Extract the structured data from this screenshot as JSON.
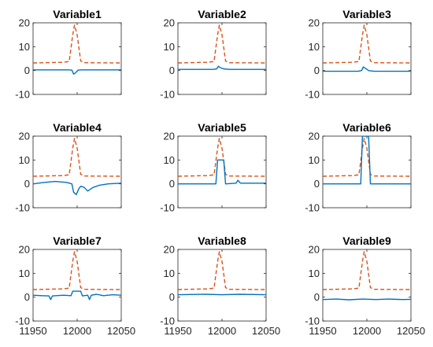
{
  "chart_data": [
    {
      "type": "line",
      "title": "Variable1",
      "xlim": [
        11950,
        12050
      ],
      "ylim": [
        -10,
        20
      ],
      "x_ticks": [
        11950,
        12000,
        12050
      ],
      "y_ticks": [
        -10,
        0,
        10,
        20
      ],
      "series": [
        {
          "color": "#D95319",
          "style": "dashed",
          "x": [
            11950,
            11985,
            11991,
            11995,
            11997,
            12000,
            12004,
            12008,
            12050
          ],
          "y": [
            3.2,
            3.5,
            3.8,
            15,
            19,
            15,
            4,
            3.3,
            3.2
          ]
        },
        {
          "color": "#0072BD",
          "style": "solid",
          "x": [
            11950,
            11990,
            11994,
            11996,
            11998,
            12001,
            12006,
            12050
          ],
          "y": [
            0.3,
            0.3,
            0.2,
            -1.5,
            -1.0,
            0.2,
            0.3,
            0.3
          ]
        }
      ]
    },
    {
      "type": "line",
      "title": "Variable2",
      "xlim": [
        11950,
        12050
      ],
      "ylim": [
        -10,
        20
      ],
      "x_ticks": [
        11950,
        12000,
        12050
      ],
      "y_ticks": [
        -10,
        0,
        10,
        20
      ],
      "series": [
        {
          "color": "#D95319",
          "style": "dashed",
          "x": [
            11950,
            11985,
            11991,
            11995,
            11997,
            12000,
            12004,
            12008,
            12050
          ],
          "y": [
            3.2,
            3.5,
            3.8,
            15,
            19,
            15,
            4,
            3.3,
            3.2
          ]
        },
        {
          "color": "#0072BD",
          "style": "solid",
          "x": [
            11950,
            11990,
            11994,
            11996,
            11998,
            12002,
            12008,
            12050
          ],
          "y": [
            0.5,
            0.5,
            0.7,
            1.8,
            1.2,
            0.7,
            0.5,
            0.5
          ]
        }
      ]
    },
    {
      "type": "line",
      "title": "Variable3",
      "xlim": [
        11950,
        12050
      ],
      "ylim": [
        -10,
        20
      ],
      "x_ticks": [
        11950,
        12000,
        12050
      ],
      "y_ticks": [
        -10,
        0,
        10,
        20
      ],
      "series": [
        {
          "color": "#D95319",
          "style": "dashed",
          "x": [
            11950,
            11985,
            11991,
            11995,
            11997,
            12000,
            12004,
            12008,
            12050
          ],
          "y": [
            3.2,
            3.5,
            3.8,
            15,
            19,
            15,
            4,
            3.3,
            3.2
          ]
        },
        {
          "color": "#0072BD",
          "style": "solid",
          "x": [
            11950,
            11990,
            11994,
            11996,
            11998,
            12002,
            12008,
            12050
          ],
          "y": [
            -0.3,
            -0.3,
            0,
            1.5,
            1.0,
            0,
            -0.3,
            -0.3
          ]
        }
      ]
    },
    {
      "type": "line",
      "title": "Variable4",
      "xlim": [
        11950,
        12050
      ],
      "ylim": [
        -10,
        20
      ],
      "x_ticks": [
        11950,
        12000,
        12050
      ],
      "y_ticks": [
        -10,
        0,
        10,
        20
      ],
      "series": [
        {
          "color": "#D95319",
          "style": "dashed",
          "x": [
            11950,
            11985,
            11991,
            11995,
            11997,
            12000,
            12004,
            12008,
            12050
          ],
          "y": [
            3.2,
            3.5,
            3.8,
            15,
            19,
            15,
            4,
            3.3,
            3.2
          ]
        },
        {
          "color": "#0072BD",
          "style": "solid",
          "x": [
            11950,
            11960,
            11975,
            11988,
            11994,
            11996,
            11999,
            12002,
            12004,
            12008,
            12012,
            12018,
            12025,
            12035,
            12050
          ],
          "y": [
            0,
            0.5,
            1.0,
            0.6,
            0,
            -3.5,
            -4.5,
            -2,
            -1,
            -1.5,
            -3,
            -1.5,
            -0.6,
            0,
            0.3
          ]
        }
      ]
    },
    {
      "type": "line",
      "title": "Variable5",
      "xlim": [
        11950,
        12050
      ],
      "ylim": [
        -10,
        20
      ],
      "x_ticks": [
        11950,
        12000,
        12050
      ],
      "y_ticks": [
        -10,
        0,
        10,
        20
      ],
      "series": [
        {
          "color": "#D95319",
          "style": "dashed",
          "x": [
            11950,
            11985,
            11991,
            11995,
            11997,
            12000,
            12004,
            12008,
            12050
          ],
          "y": [
            3.2,
            3.5,
            3.8,
            15,
            19,
            15,
            4,
            3.3,
            3.2
          ]
        },
        {
          "color": "#0072BD",
          "style": "solid",
          "x": [
            11950,
            11993,
            11995,
            12002,
            12004,
            12016,
            12018,
            12021,
            12050
          ],
          "y": [
            0,
            0,
            10,
            10,
            0,
            0.3,
            1.5,
            0.3,
            0.3
          ]
        }
      ]
    },
    {
      "type": "line",
      "title": "Variable6",
      "xlim": [
        11950,
        12050
      ],
      "ylim": [
        -10,
        20
      ],
      "x_ticks": [
        11950,
        12000,
        12050
      ],
      "y_ticks": [
        -10,
        0,
        10,
        20
      ],
      "series": [
        {
          "color": "#D95319",
          "style": "dashed",
          "x": [
            11950,
            11985,
            11991,
            11995,
            11997,
            12000,
            12004,
            12008,
            12050
          ],
          "y": [
            3.2,
            3.5,
            3.8,
            15,
            19,
            15,
            4,
            3.3,
            3.2
          ]
        },
        {
          "color": "#0072BD",
          "style": "solid",
          "x": [
            11950,
            11993,
            11995,
            12002,
            12004,
            12050
          ],
          "y": [
            0,
            0,
            20,
            20,
            0,
            0
          ]
        }
      ]
    },
    {
      "type": "line",
      "title": "Variable7",
      "xlim": [
        11950,
        12050
      ],
      "ylim": [
        -10,
        20
      ],
      "x_ticks": [
        11950,
        12000,
        12050
      ],
      "y_ticks": [
        -10,
        0,
        10,
        20
      ],
      "series": [
        {
          "color": "#D95319",
          "style": "dashed",
          "x": [
            11950,
            11985,
            11991,
            11995,
            11997,
            12000,
            12004,
            12008,
            12050
          ],
          "y": [
            3.2,
            3.5,
            3.8,
            15,
            19,
            15,
            4,
            3.3,
            3.2
          ]
        },
        {
          "color": "#0072BD",
          "style": "solid",
          "x": [
            11950,
            11960,
            11968,
            11970,
            11972,
            11985,
            11993,
            11995,
            12004,
            12006,
            12012,
            12014,
            12016,
            12022,
            12030,
            12040,
            12050
          ],
          "y": [
            0.8,
            0.6,
            0.5,
            -1.0,
            0.5,
            0.8,
            0.6,
            2.5,
            2.5,
            0.5,
            0.8,
            -1.0,
            0.8,
            1.2,
            0.6,
            1.0,
            0.8
          ]
        }
      ]
    },
    {
      "type": "line",
      "title": "Variable8",
      "xlim": [
        11950,
        12050
      ],
      "ylim": [
        -10,
        20
      ],
      "x_ticks": [
        11950,
        12000,
        12050
      ],
      "y_ticks": [
        -10,
        0,
        10,
        20
      ],
      "series": [
        {
          "color": "#D95319",
          "style": "dashed",
          "x": [
            11950,
            11985,
            11991,
            11995,
            11997,
            12000,
            12004,
            12008,
            12050
          ],
          "y": [
            3.2,
            3.5,
            3.8,
            15,
            19,
            15,
            4,
            3.3,
            3.2
          ]
        },
        {
          "color": "#0072BD",
          "style": "solid",
          "x": [
            11950,
            11980,
            12000,
            12020,
            12050
          ],
          "y": [
            1.0,
            1.2,
            1.0,
            1.2,
            1.0
          ]
        }
      ]
    },
    {
      "type": "line",
      "title": "Variable9",
      "xlim": [
        11950,
        12050
      ],
      "ylim": [
        -10,
        20
      ],
      "x_ticks": [
        11950,
        12000,
        12050
      ],
      "y_ticks": [
        -10,
        0,
        10,
        20
      ],
      "series": [
        {
          "color": "#D95319",
          "style": "dashed",
          "x": [
            11950,
            11985,
            11991,
            11995,
            11997,
            12000,
            12004,
            12008,
            12050
          ],
          "y": [
            3.2,
            3.5,
            3.8,
            15,
            19,
            15,
            4,
            3.3,
            3.2
          ]
        },
        {
          "color": "#0072BD",
          "style": "solid",
          "x": [
            11950,
            11965,
            11980,
            11995,
            12010,
            12025,
            12040,
            12050
          ],
          "y": [
            -1.0,
            -0.8,
            -1.1,
            -0.8,
            -1.0,
            -0.8,
            -1.0,
            -0.9
          ]
        }
      ]
    }
  ]
}
